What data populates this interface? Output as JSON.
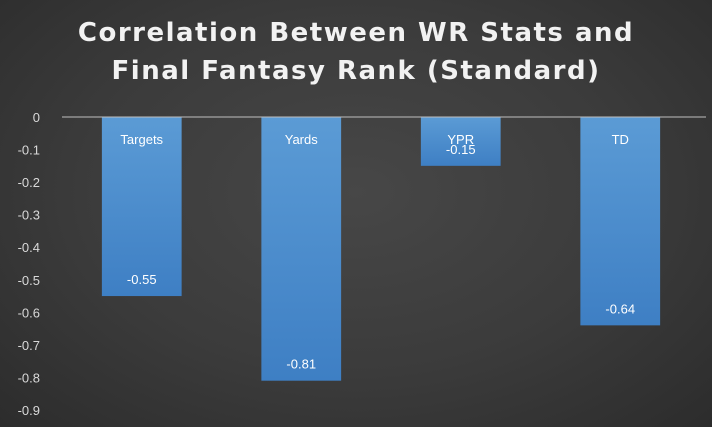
{
  "chart_data": {
    "type": "bar",
    "title_lines": [
      "Correlation Between WR Stats and",
      "Final Fantasy Rank (Standard)"
    ],
    "categories": [
      "Targets",
      "Yards",
      "YPR",
      "TD"
    ],
    "values": [
      -0.55,
      -0.81,
      -0.15,
      -0.64
    ],
    "value_labels": [
      "-0.55",
      "-0.81",
      "-0.15",
      "-0.64"
    ],
    "yticks": [
      0,
      -0.1,
      -0.2,
      -0.3,
      -0.4,
      -0.5,
      -0.6,
      -0.7,
      -0.8,
      -0.9
    ],
    "ytick_labels": [
      "0",
      "-0.1",
      "-0.2",
      "-0.3",
      "-0.4",
      "-0.5",
      "-0.6",
      "-0.7",
      "-0.8",
      "-0.9"
    ],
    "ylim": [
      -0.9,
      0
    ],
    "xlabel": "",
    "ylabel": "",
    "grid": false,
    "legend": "none",
    "colors": {
      "bar_top": "#5b9bd5",
      "bar_bottom": "#3e7fc4",
      "axis": "#bfbfbf",
      "background": "#3b3b3b"
    }
  }
}
